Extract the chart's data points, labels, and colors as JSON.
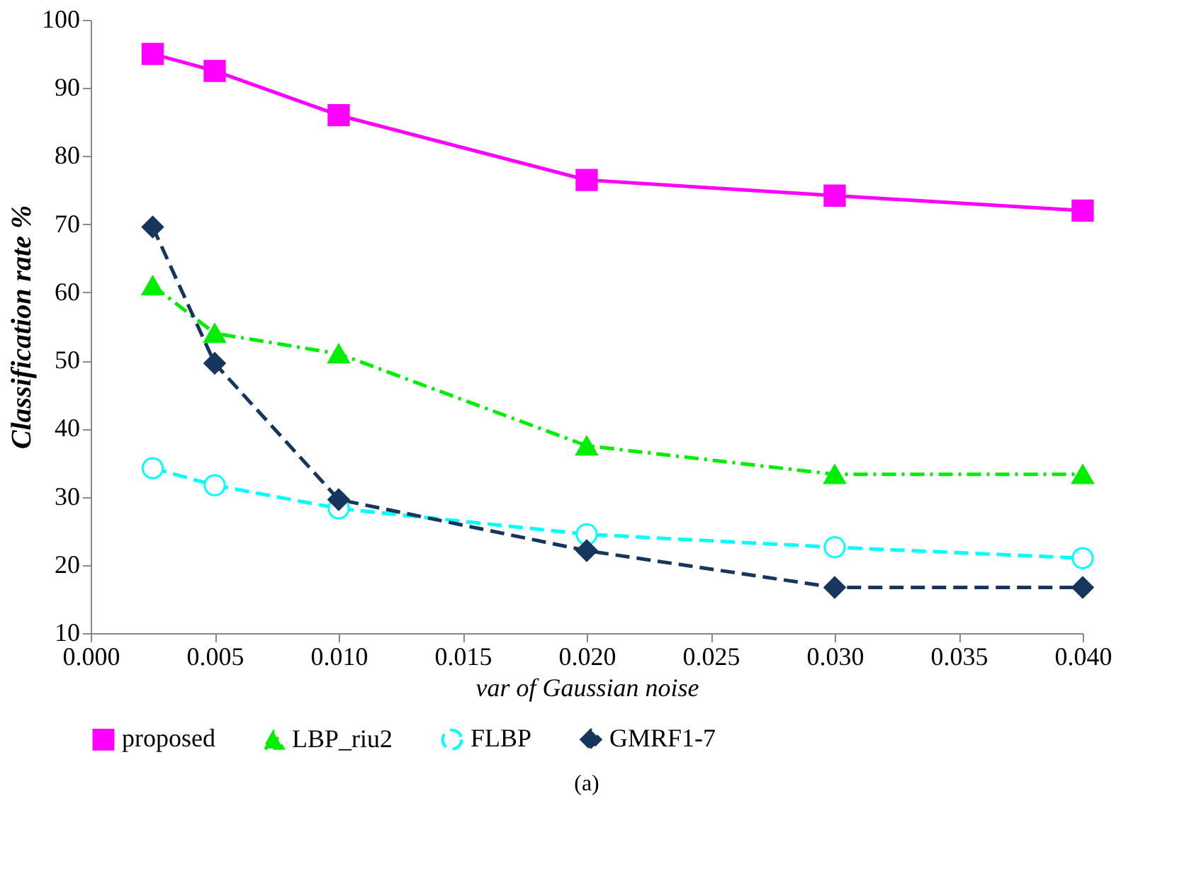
{
  "chart_data": {
    "type": "line",
    "xlabel": "var of Gaussian noise",
    "ylabel": "Classification rate %",
    "x": [
      0.0025,
      0.005,
      0.01,
      0.02,
      0.03,
      0.04
    ],
    "series": [
      {
        "name": "proposed",
        "color": "#ff00ff",
        "marker": "square",
        "line_style": "solid",
        "values": [
          95,
          92.5,
          86,
          76.5,
          74.2,
          72
        ]
      },
      {
        "name": "LBP_riu2",
        "color": "#00ee00",
        "marker": "triangle",
        "line_style": "dashdot",
        "values": [
          61,
          54,
          51,
          37.5,
          33.3,
          33.3
        ]
      },
      {
        "name": "FLBP",
        "color": "#00ffff",
        "marker": "circle",
        "line_style": "dashed",
        "values": [
          34.2,
          31.7,
          28.3,
          24.5,
          22.6,
          21
        ]
      },
      {
        "name": "GMRF1-7",
        "color": "#17365d",
        "marker": "diamond",
        "line_style": "dashed",
        "values": [
          69.6,
          49.6,
          29.6,
          22.1,
          16.7,
          16.7
        ]
      }
    ],
    "xlim": [
      0,
      0.04
    ],
    "xticks": [
      {
        "value": 0,
        "label": "0.000"
      },
      {
        "value": 0.005,
        "label": "0.005"
      },
      {
        "value": 0.01,
        "label": "0.010"
      },
      {
        "value": 0.015,
        "label": "0.015"
      },
      {
        "value": 0.02,
        "label": "0.020"
      },
      {
        "value": 0.025,
        "label": "0.025"
      },
      {
        "value": 0.03,
        "label": "0.030"
      },
      {
        "value": 0.035,
        "label": "0.035"
      },
      {
        "value": 0.04,
        "label": "0.040"
      }
    ],
    "ylim": [
      10,
      100
    ],
    "yticks": [
      10,
      20,
      30,
      40,
      50,
      60,
      70,
      80,
      90,
      100
    ],
    "grid": false,
    "legend": "bottom",
    "annotations": [
      "(a)"
    ]
  }
}
